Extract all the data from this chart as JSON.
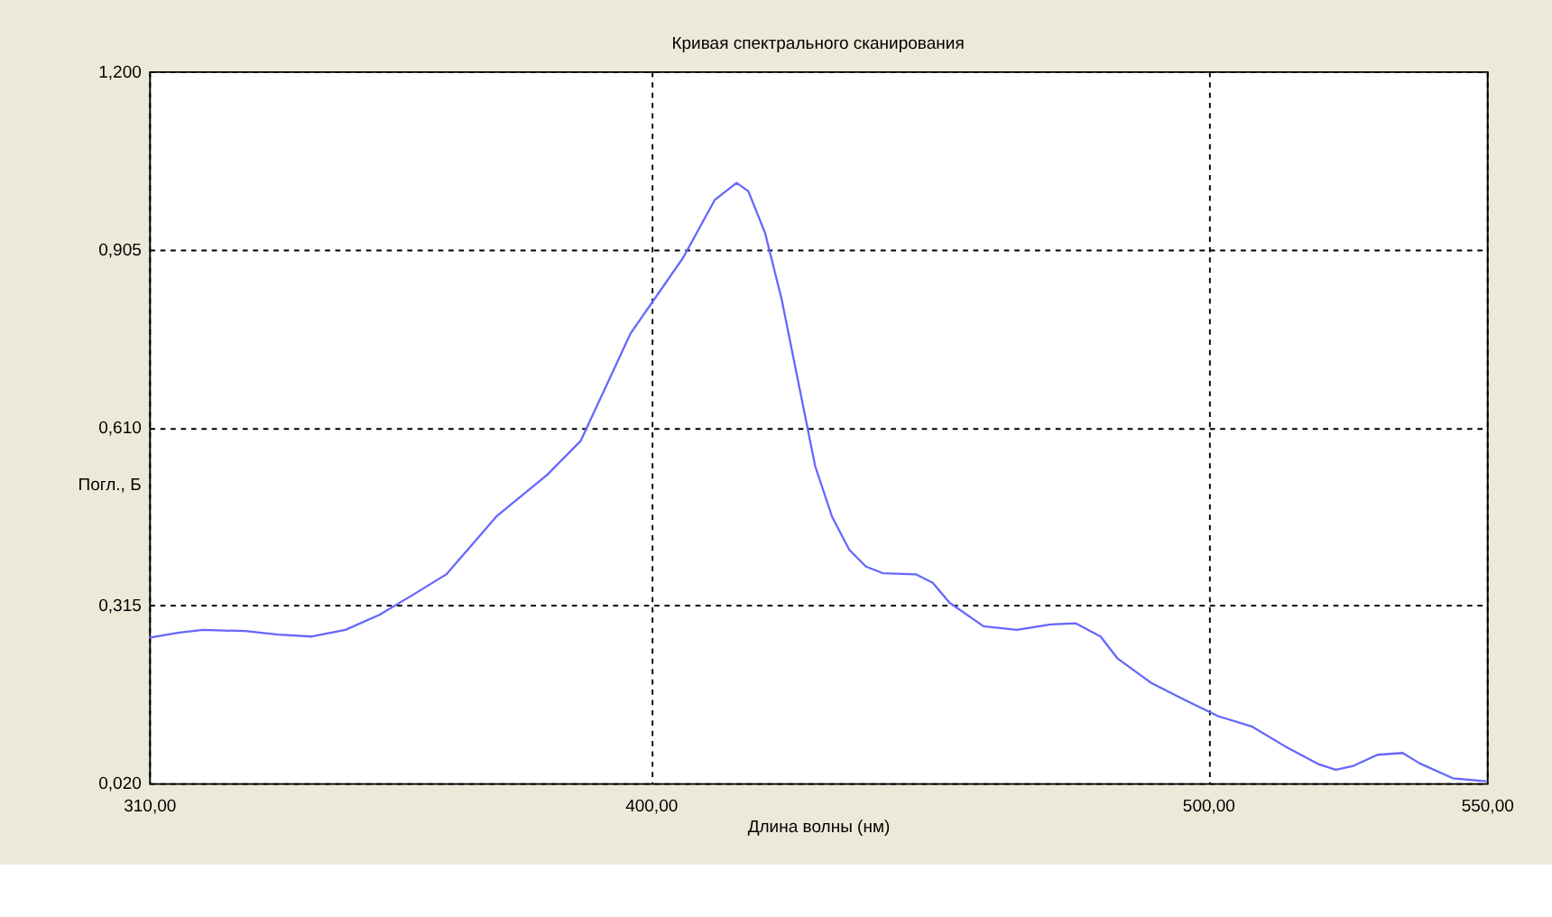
{
  "chart_data": {
    "type": "line",
    "title": "Кривая спектрального сканирования",
    "xlabel": "Длина волны (нм)",
    "ylabel": "Погл., Б",
    "x": [
      310.0,
      315.1,
      319.6,
      327.2,
      333.2,
      339.2,
      345.2,
      351.3,
      357.3,
      363.3,
      372.3,
      381.4,
      387.4,
      396.4,
      405.8,
      411.5,
      415.4,
      417.5,
      420.5,
      423.5,
      426.5,
      429.5,
      432.5,
      435.6,
      438.6,
      441.6,
      447.6,
      450.6,
      453.6,
      459.7,
      465.7,
      471.7,
      476.2,
      480.7,
      483.7,
      489.8,
      495.8,
      501.8,
      507.8,
      513.8,
      519.9,
      522.9,
      525.9,
      530.4,
      534.9,
      537.9,
      543.9,
      549.9
    ],
    "series": [
      {
        "color": "#6666ff",
        "values": [
          0.261,
          0.269,
          0.274,
          0.272,
          0.266,
          0.263,
          0.274,
          0.299,
          0.332,
          0.366,
          0.462,
          0.531,
          0.587,
          0.766,
          0.891,
          0.987,
          1.015,
          1.001,
          0.932,
          0.821,
          0.683,
          0.545,
          0.462,
          0.407,
          0.379,
          0.368,
          0.366,
          0.352,
          0.319,
          0.28,
          0.274,
          0.283,
          0.285,
          0.263,
          0.227,
          0.186,
          0.158,
          0.131,
          0.114,
          0.081,
          0.051,
          0.042,
          0.048,
          0.067,
          0.07,
          0.053,
          0.028,
          0.023
        ]
      }
    ],
    "xlim": [
      310,
      550
    ],
    "xticks": [
      {
        "value": 310,
        "label": "310,00"
      },
      {
        "value": 400,
        "label": "400,00"
      },
      {
        "value": 500,
        "label": "500,00"
      },
      {
        "value": 550,
        "label": "550,00"
      }
    ],
    "ylim": [
      0.02,
      1.2
    ],
    "yticks": [
      {
        "value": 0.02,
        "label": "0,020"
      },
      {
        "value": 0.315,
        "label": "0,315"
      },
      {
        "value": 0.61,
        "label": "0,610"
      },
      {
        "value": 0.905,
        "label": "0,905"
      },
      {
        "value": 1.2,
        "label": "1,200"
      }
    ],
    "grid": true,
    "line_style": "solid",
    "marker": "none"
  }
}
